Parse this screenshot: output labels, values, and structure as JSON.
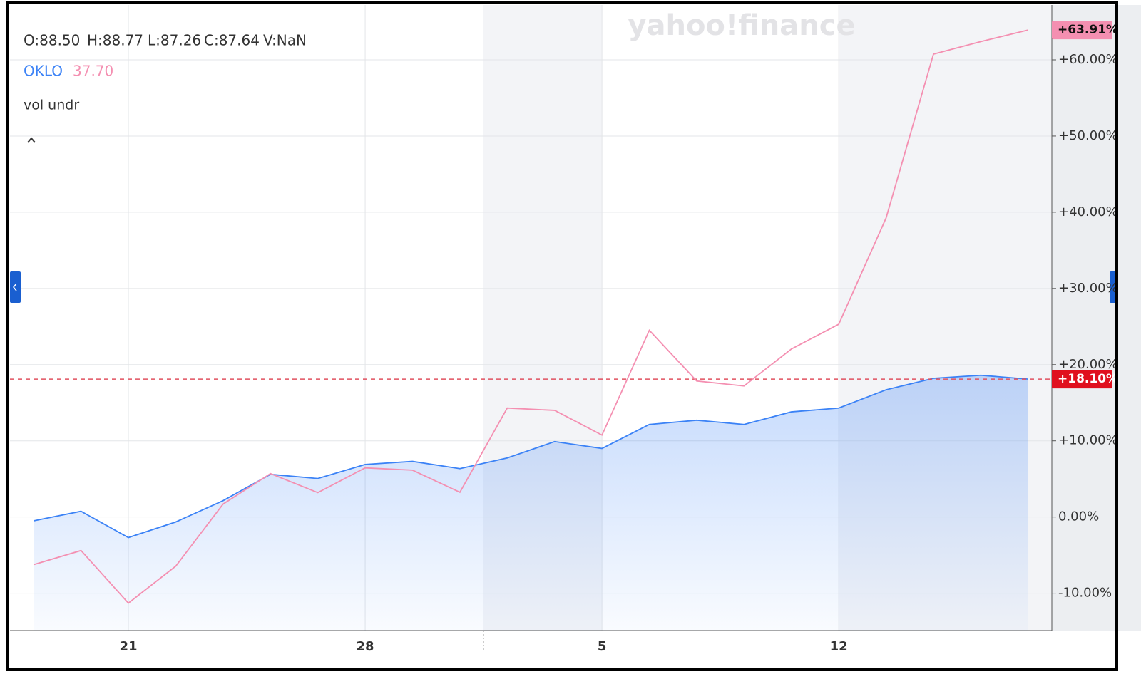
{
  "chart_data": {
    "type": "line",
    "watermark": "yahoo!finance",
    "ohlc": [
      "O:88.50",
      "H:88.77",
      "L:87.26",
      "C:87.64",
      "V:NaN"
    ],
    "symbol_price": "37.70",
    "study": "vol undr",
    "categories": [
      null,
      null,
      "21",
      null,
      null,
      null,
      null,
      "28",
      null,
      null,
      null,
      null,
      "5",
      null,
      null,
      null,
      null,
      "12",
      null,
      null,
      null,
      null
    ],
    "series": [
      {
        "color": "#3b82f6",
        "area": true,
        "values": [
          -0.5,
          0.75,
          -2.7,
          -0.65,
          2.15,
          5.6,
          5.05,
          6.9,
          7.3,
          6.35,
          7.75,
          9.9,
          9.0,
          12.15,
          12.7,
          12.15,
          13.8,
          14.3,
          16.7,
          18.2,
          18.6,
          18.1
        ],
        "value_labels": [
          null,
          null,
          null,
          null,
          null,
          null,
          null,
          null,
          null,
          null,
          null,
          null,
          null,
          null,
          null,
          null,
          null,
          null,
          null,
          null,
          null,
          "+18.10%"
        ]
      },
      {
        "name": "OKLO",
        "color": "#f48fb1",
        "values": [
          -6.25,
          -4.4,
          -11.3,
          -6.45,
          1.7,
          5.7,
          3.2,
          6.45,
          6.15,
          3.25,
          14.3,
          14.0,
          10.75,
          24.5,
          17.85,
          17.2,
          22.05,
          25.3,
          39.25,
          60.75,
          62.4,
          63.91
        ],
        "value_labels": [
          null,
          null,
          null,
          null,
          null,
          null,
          null,
          null,
          null,
          null,
          null,
          null,
          null,
          null,
          null,
          null,
          null,
          null,
          null,
          null,
          null,
          "+63.91%"
        ]
      }
    ],
    "ylim": [
      -14.9,
      67.2
    ],
    "yticks": [
      {
        "value": -10,
        "label": "-10.00%"
      },
      {
        "value": 0,
        "label": "0.00%"
      },
      {
        "value": 10,
        "label": "+10.00%"
      },
      {
        "value": 20,
        "label": "+20.00%"
      },
      {
        "value": 30,
        "label": "+30.00%"
      },
      {
        "value": 40,
        "label": "+40.00%"
      },
      {
        "value": 50,
        "label": "+50.00%"
      },
      {
        "value": 60,
        "label": "+60.00%"
      }
    ],
    "grid": true
  }
}
